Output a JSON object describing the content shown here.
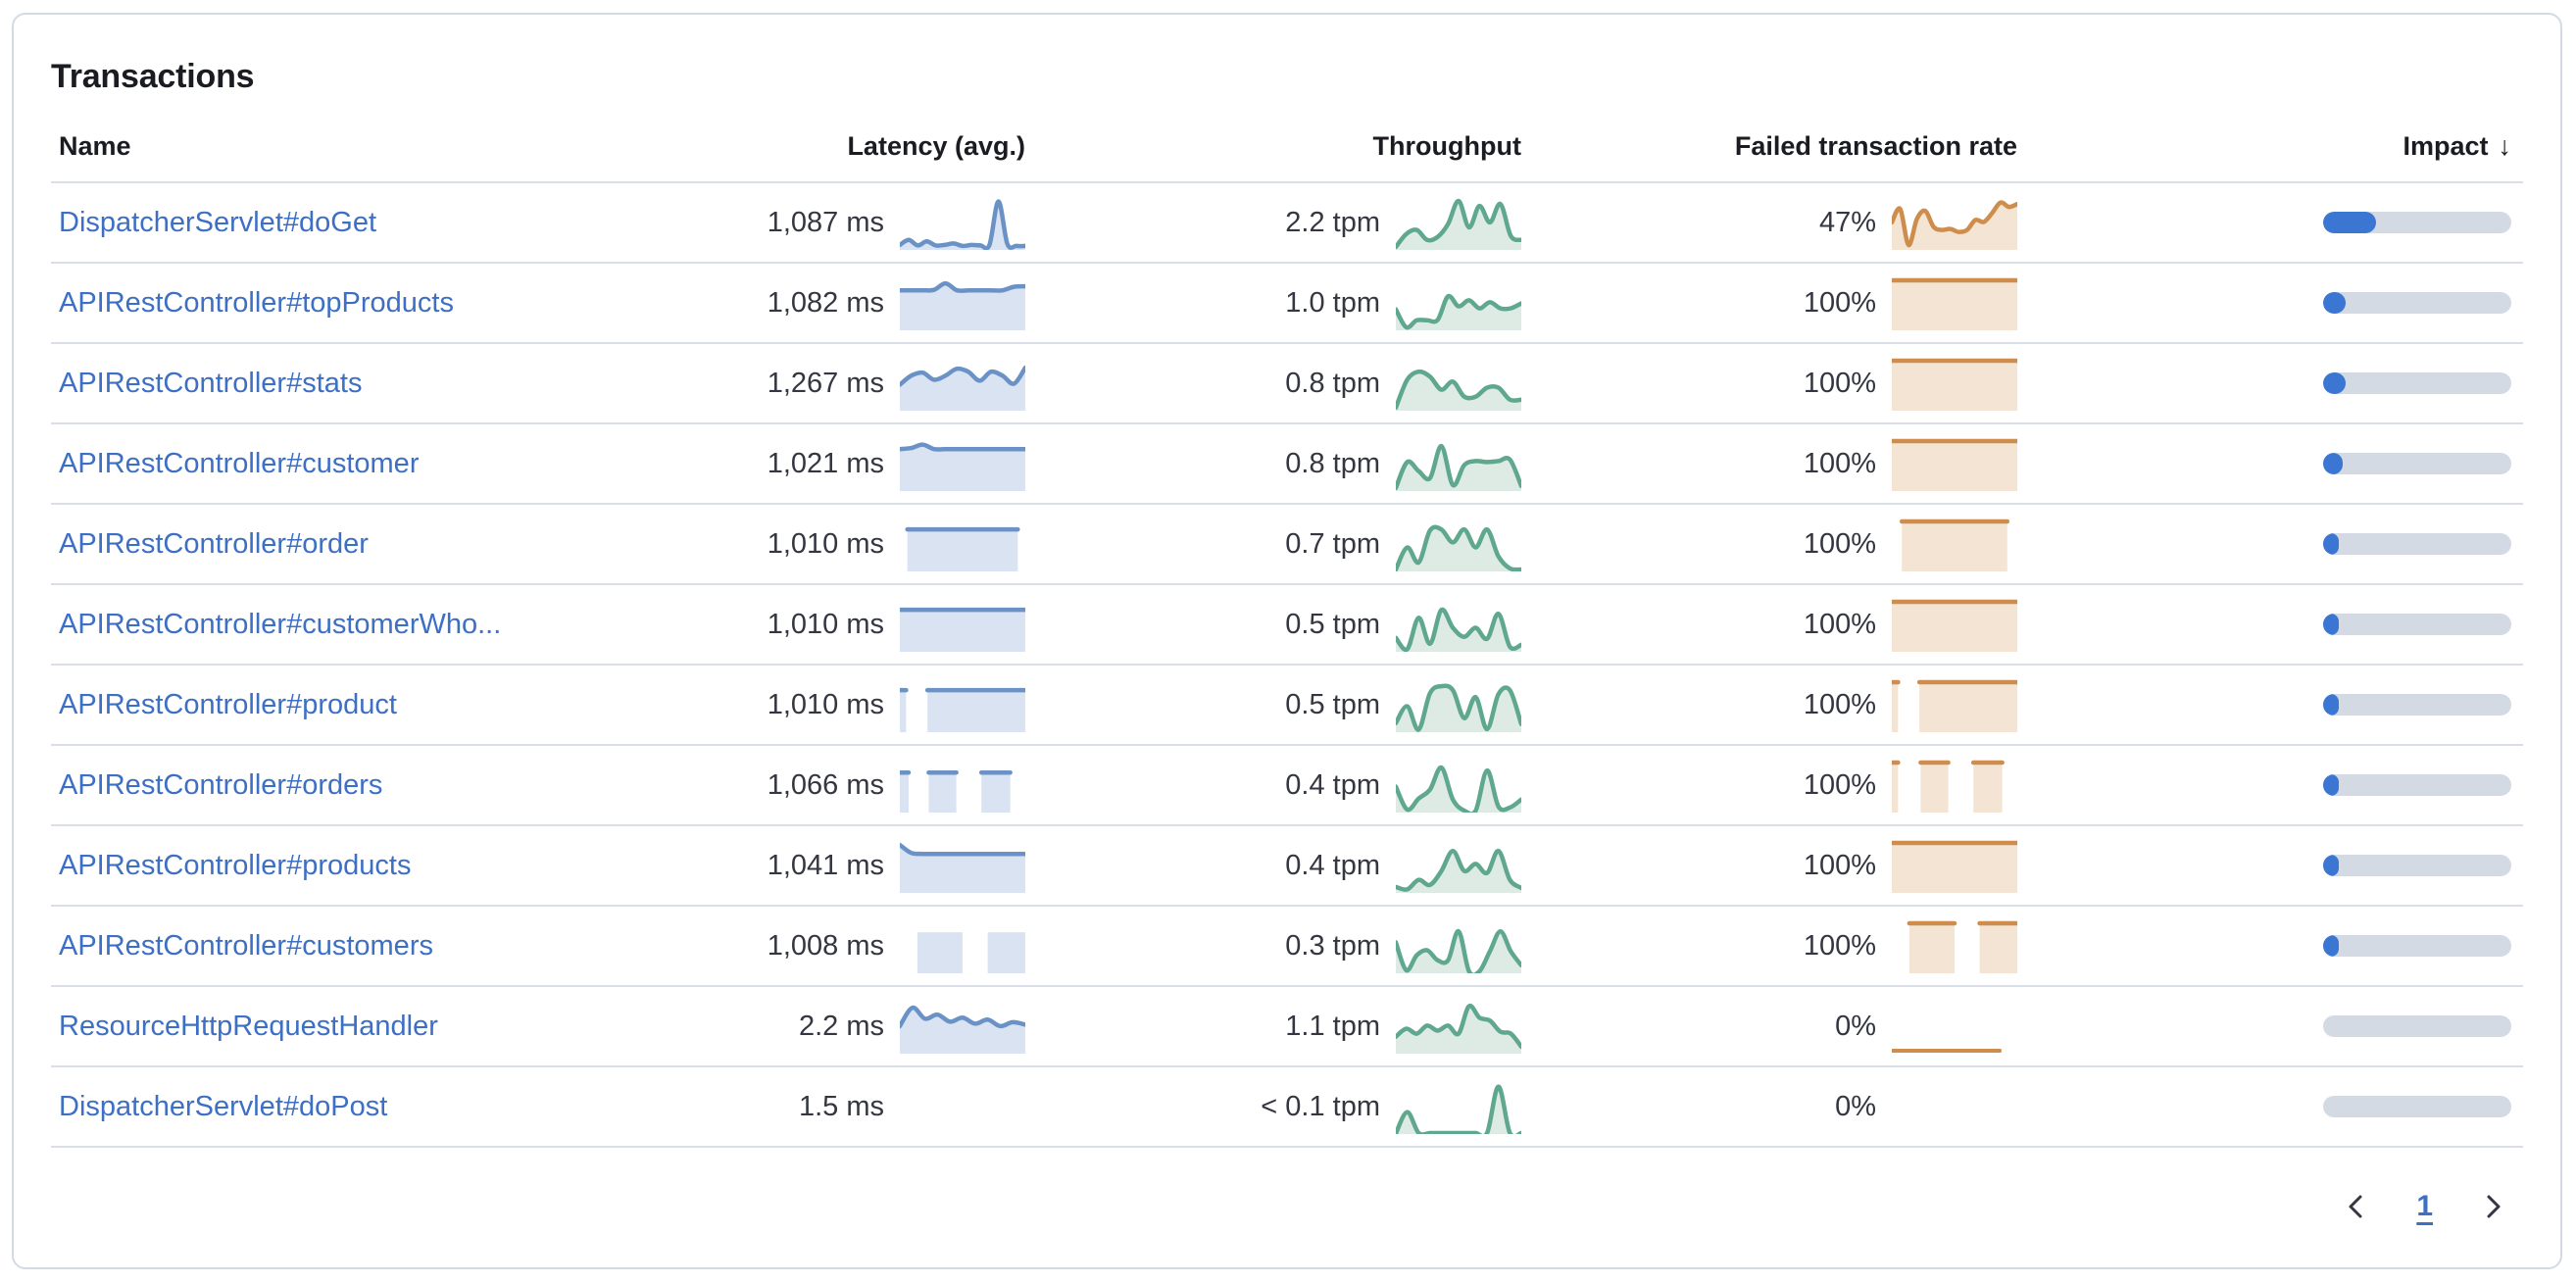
{
  "card": {
    "title": "Transactions"
  },
  "table": {
    "columns": {
      "name": "Name",
      "latency": "Latency (avg.)",
      "throughput": "Throughput",
      "failed": "Failed transaction rate",
      "impact": "Impact"
    },
    "sort_icon": "↓",
    "rows": [
      {
        "name": "DispatcherServlet#doGet",
        "latency": "1,087 ms",
        "throughput": "2.2 tpm",
        "failed": "47%",
        "impact": 0.28,
        "latency_spark": {
          "kind": "area",
          "points": [
            0.1,
            0.2,
            0.09,
            0.17,
            0.09,
            0.1,
            0.13,
            0.08,
            0.1,
            0.09,
            0.1,
            0.97,
            0.12,
            0.08,
            0.08
          ]
        },
        "throughput_spark": {
          "kind": "area",
          "points": [
            0.06,
            0.32,
            0.4,
            0.2,
            0.26,
            0.52,
            0.98,
            0.45,
            0.88,
            0.55,
            0.92,
            0.28,
            0.2
          ]
        },
        "failed_spark": {
          "kind": "area",
          "points": [
            0.55,
            0.82,
            0.1,
            0.62,
            0.78,
            0.46,
            0.4,
            0.42,
            0.36,
            0.4,
            0.6,
            0.56,
            0.74,
            0.95,
            0.86,
            0.92
          ]
        }
      },
      {
        "name": "APIRestController#topProducts",
        "latency": "1,082 ms",
        "throughput": "1.0 tpm",
        "failed": "100%",
        "impact": 0.12,
        "latency_spark": {
          "kind": "area",
          "points": [
            0.8,
            0.8,
            0.8,
            0.81,
            0.94,
            0.8,
            0.8,
            0.8,
            0.8,
            0.8,
            0.87,
            0.88
          ]
        },
        "throughput_spark": {
          "kind": "area",
          "points": [
            0.42,
            0.06,
            0.2,
            0.2,
            0.21,
            0.68,
            0.48,
            0.6,
            0.44,
            0.56,
            0.44,
            0.44,
            0.54
          ]
        },
        "failed_spark": {
          "kind": "blocks",
          "segments": [
            [
              0,
              1
            ]
          ],
          "top": 1,
          "line": true
        }
      },
      {
        "name": "APIRestController#stats",
        "latency": "1,267 ms",
        "throughput": "0.8 tpm",
        "failed": "100%",
        "impact": 0.12,
        "latency_spark": {
          "kind": "area",
          "points": [
            0.52,
            0.7,
            0.76,
            0.62,
            0.7,
            0.84,
            0.78,
            0.6,
            0.78,
            0.7,
            0.54,
            0.86
          ]
        },
        "throughput_spark": {
          "kind": "area",
          "points": [
            0.06,
            0.62,
            0.78,
            0.68,
            0.42,
            0.58,
            0.28,
            0.28,
            0.46,
            0.46,
            0.22,
            0.22
          ]
        },
        "failed_spark": {
          "kind": "blocks",
          "segments": [
            [
              0,
              1
            ]
          ],
          "top": 1,
          "line": true
        }
      },
      {
        "name": "APIRestController#customer",
        "latency": "1,021 ms",
        "throughput": "0.8 tpm",
        "failed": "100%",
        "impact": 0.105,
        "latency_spark": {
          "kind": "area",
          "points": [
            0.84,
            0.86,
            0.93,
            0.84,
            0.84,
            0.84,
            0.84,
            0.84,
            0.84,
            0.84,
            0.84,
            0.84
          ]
        },
        "throughput_spark": {
          "kind": "area",
          "points": [
            0.06,
            0.58,
            0.4,
            0.26,
            0.9,
            0.12,
            0.52,
            0.6,
            0.58,
            0.6,
            0.63,
            0.1
          ]
        },
        "failed_spark": {
          "kind": "blocks",
          "segments": [
            [
              0,
              1
            ]
          ],
          "top": 1,
          "line": true
        }
      },
      {
        "name": "APIRestController#order",
        "latency": "1,010 ms",
        "throughput": "0.7 tpm",
        "failed": "100%",
        "impact": 0.085,
        "latency_spark": {
          "kind": "blocks",
          "segments": [
            [
              0.06,
              0.94
            ]
          ],
          "top": 0.84,
          "line": true
        },
        "throughput_spark": {
          "kind": "area",
          "points": [
            0.04,
            0.48,
            0.18,
            0.82,
            0.84,
            0.58,
            0.84,
            0.48,
            0.84,
            0.3,
            0.06,
            0.04
          ]
        },
        "failed_spark": {
          "kind": "blocks",
          "segments": [
            [
              0.08,
              0.92
            ]
          ],
          "top": 1,
          "line": true
        }
      },
      {
        "name": "APIRestController#customerWho...",
        "latency": "1,010 ms",
        "throughput": "0.5 tpm",
        "failed": "100%",
        "impact": 0.072,
        "latency_spark": {
          "kind": "blocks",
          "segments": [
            [
              0,
              1
            ]
          ],
          "top": 0.84,
          "line": true
        },
        "throughput_spark": {
          "kind": "area",
          "points": [
            0.28,
            0.05,
            0.68,
            0.16,
            0.84,
            0.48,
            0.3,
            0.48,
            0.26,
            0.76,
            0.1,
            0.14
          ]
        },
        "failed_spark": {
          "kind": "blocks",
          "segments": [
            [
              0,
              1
            ]
          ],
          "top": 1,
          "line": true
        }
      },
      {
        "name": "APIRestController#product",
        "latency": "1,010 ms",
        "throughput": "0.5 tpm",
        "failed": "100%",
        "impact": 0.065,
        "latency_spark": {
          "kind": "blocks",
          "segments": [
            [
              0,
              0.05
            ],
            [
              0.22,
              1
            ]
          ],
          "top": 0.84,
          "line": true
        },
        "throughput_spark": {
          "kind": "area",
          "points": [
            0.18,
            0.52,
            0.05,
            0.78,
            0.92,
            0.84,
            0.28,
            0.7,
            0.06,
            0.76,
            0.84,
            0.16
          ]
        },
        "failed_spark": {
          "kind": "blocks",
          "segments": [
            [
              0,
              0.05
            ],
            [
              0.22,
              1
            ]
          ],
          "top": 1,
          "line": true
        }
      },
      {
        "name": "APIRestController#orders",
        "latency": "1,066 ms",
        "throughput": "0.4 tpm",
        "failed": "100%",
        "impact": 0.058,
        "latency_spark": {
          "kind": "blocks",
          "segments": [
            [
              0,
              0.07
            ],
            [
              0.23,
              0.45
            ],
            [
              0.65,
              0.88
            ]
          ],
          "top": 0.8,
          "line": true
        },
        "throughput_spark": {
          "kind": "area",
          "points": [
            0.52,
            0.06,
            0.28,
            0.46,
            0.9,
            0.26,
            0.04,
            0.04,
            0.84,
            0.12,
            0.1,
            0.26
          ]
        },
        "failed_spark": {
          "kind": "blocks",
          "segments": [
            [
              0,
              0.05
            ],
            [
              0.23,
              0.45
            ],
            [
              0.65,
              0.88
            ]
          ],
          "top": 1,
          "line": true
        }
      },
      {
        "name": "APIRestController#products",
        "latency": "1,041 ms",
        "throughput": "0.4 tpm",
        "failed": "100%",
        "impact": 0.052,
        "latency_spark": {
          "kind": "area",
          "points": [
            0.96,
            0.8,
            0.78,
            0.78,
            0.78,
            0.78,
            0.78,
            0.78,
            0.78,
            0.78,
            0.78,
            0.78
          ]
        },
        "throughput_spark": {
          "kind": "area",
          "points": [
            0.12,
            0.07,
            0.26,
            0.16,
            0.44,
            0.84,
            0.44,
            0.58,
            0.4,
            0.84,
            0.26,
            0.1
          ]
        },
        "failed_spark": {
          "kind": "blocks",
          "segments": [
            [
              0,
              1
            ]
          ],
          "top": 1,
          "line": true
        }
      },
      {
        "name": "APIRestController#customers",
        "latency": "1,008 ms",
        "throughput": "0.3 tpm",
        "failed": "100%",
        "impact": 0.042,
        "latency_spark": {
          "kind": "blocks",
          "segments": [
            [
              0.14,
              0.5
            ],
            [
              0.7,
              1
            ]
          ],
          "top": 0.82,
          "line": false
        },
        "throughput_spark": {
          "kind": "area",
          "points": [
            0.62,
            0.06,
            0.36,
            0.46,
            0.26,
            0.26,
            0.84,
            0.04,
            0.04,
            0.44,
            0.84,
            0.44,
            0.16
          ]
        },
        "failed_spark": {
          "kind": "blocks",
          "segments": [
            [
              0.14,
              0.5
            ],
            [
              0.7,
              1
            ]
          ],
          "top": 1,
          "line": true
        }
      },
      {
        "name": "ResourceHttpRequestHandler",
        "latency": "2.2 ms",
        "throughput": "1.1 tpm",
        "failed": "0%",
        "impact": 0,
        "latency_spark": {
          "kind": "area",
          "points": [
            0.55,
            0.92,
            0.7,
            0.78,
            0.64,
            0.72,
            0.6,
            0.68,
            0.55,
            0.63,
            0.58
          ]
        },
        "throughput_spark": {
          "kind": "area",
          "points": [
            0.34,
            0.5,
            0.4,
            0.56,
            0.46,
            0.56,
            0.4,
            0.95,
            0.72,
            0.66,
            0.44,
            0.4,
            0.14
          ]
        },
        "failed_spark": {
          "kind": "baseline",
          "span": [
            0,
            0.86
          ]
        }
      },
      {
        "name": "DispatcherServlet#doPost",
        "latency": "1.5 ms",
        "throughput": "< 0.1 tpm",
        "failed": "0%",
        "impact": 0,
        "latency_spark": null,
        "throughput_spark": {
          "kind": "area",
          "points": [
            0.01,
            0.44,
            0.02,
            0.02,
            0.02,
            0.02,
            0.02,
            0.02,
            0.02,
            0.95,
            0.02,
            0.02
          ]
        },
        "failed_spark": null
      }
    ]
  },
  "pagination": {
    "current_page": "1"
  },
  "colors": {
    "link": "#3D6FC4",
    "text": "#343741",
    "heading": "#1A1C21",
    "border": "#D3DAE6",
    "row_border": "#D9DEE9",
    "latency_line": "#6A92C6",
    "latency_fill": "#DAE3F1",
    "throughput_line": "#5FA88F",
    "throughput_fill": "#DEEBE4",
    "failed_line": "#CE8D4C",
    "failed_fill": "#F3E4D3",
    "impact_fill": "#3B76D2",
    "impact_track": "#D3DAE4"
  }
}
